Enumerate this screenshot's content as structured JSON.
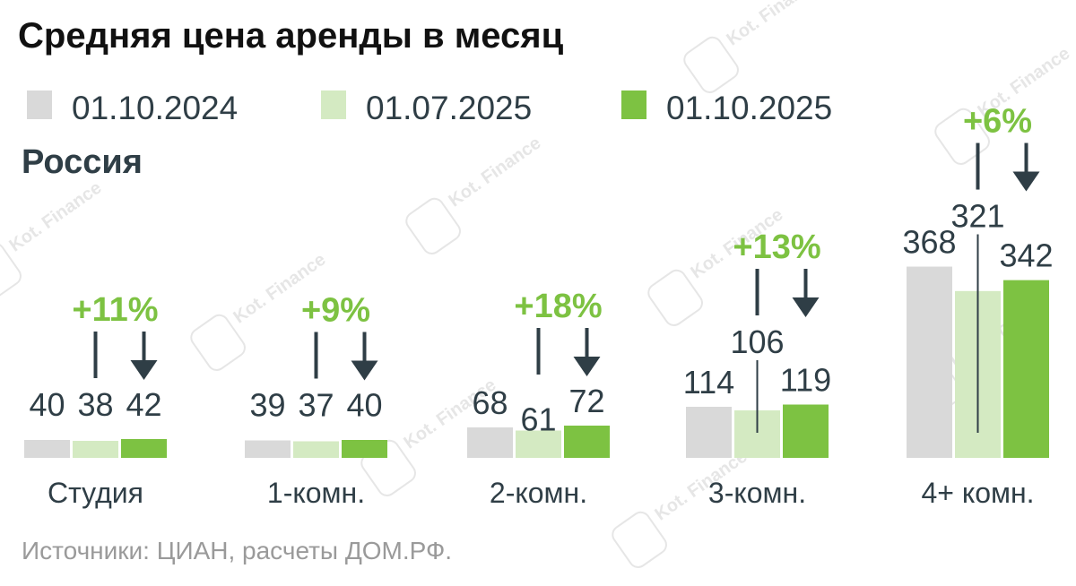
{
  "chart_data": {
    "type": "bar",
    "title": "Средняя цена аренды в месяц",
    "subtitle": "Россия",
    "categories": [
      "Студия",
      "1-комн.",
      "2-комн.",
      "3-комн.",
      "4+ комн."
    ],
    "series": [
      {
        "name": "01.10.2024",
        "color": "#d9d9d9",
        "values": [
          40,
          39,
          68,
          114,
          368
        ],
        "labels": [
          "40",
          "39",
          "68",
          "114",
          "368"
        ]
      },
      {
        "name": "01.07.2025",
        "color": "#d4eac2",
        "values": [
          38,
          37,
          61,
          106,
          321
        ],
        "labels": [
          "38",
          "37",
          "61",
          "106",
          "321"
        ]
      },
      {
        "name": "01.10.2025",
        "color": "#7dc242",
        "values": [
          42,
          40,
          72,
          119,
          342
        ],
        "labels": [
          "42",
          "40",
          "72",
          "119",
          "342"
        ]
      }
    ],
    "annotations": [
      "+11%",
      "+9%",
      "+18%",
      "+13%",
      "+6%"
    ],
    "source": "Источники: ЦИАН, расчеты ДОМ.РФ.",
    "legend_position": "top",
    "grid": false
  },
  "watermark": "Kot. Finance"
}
